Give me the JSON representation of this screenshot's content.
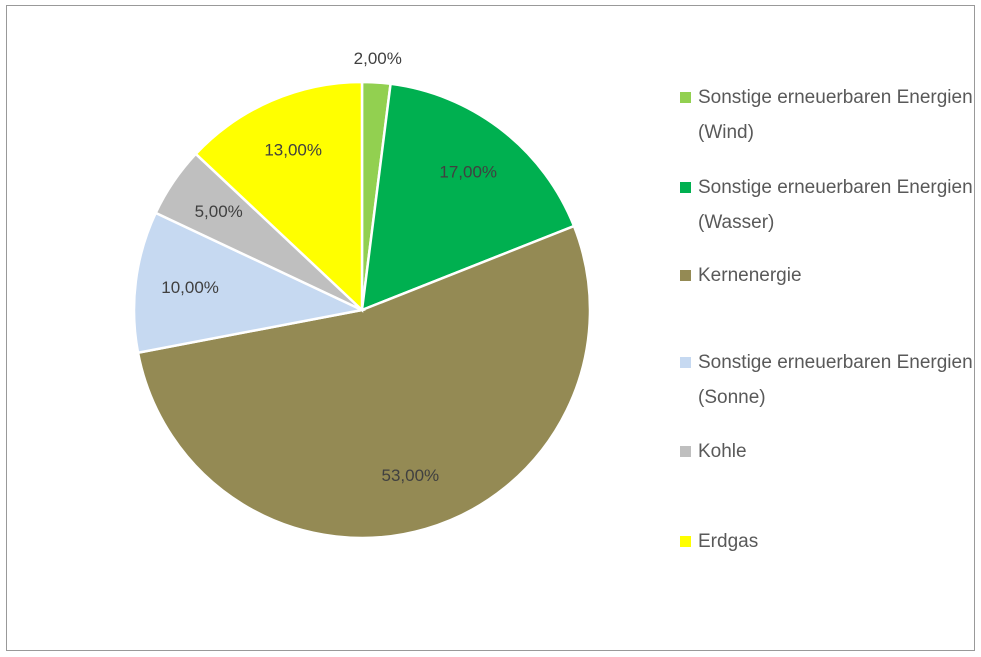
{
  "chart_data": {
    "type": "pie",
    "categories": [
      "Sonstige erneuerbaren Energien (Wind)",
      "Sonstige erneuerbaren Energien (Wasser)",
      "Kernenergie",
      "Sonstige erneuerbaren Energien (Sonne)",
      "Kohle",
      "Erdgas"
    ],
    "values": [
      2,
      17,
      53,
      10,
      5,
      13
    ],
    "value_labels": [
      "2,00%",
      "17,00%",
      "53,00%",
      "10,00%",
      "5,00%",
      "13,00%"
    ],
    "colors": [
      "#92d050",
      "#00b050",
      "#948a54",
      "#c6d9f1",
      "#bfbfbf",
      "#ffff00"
    ],
    "legend": "right"
  }
}
